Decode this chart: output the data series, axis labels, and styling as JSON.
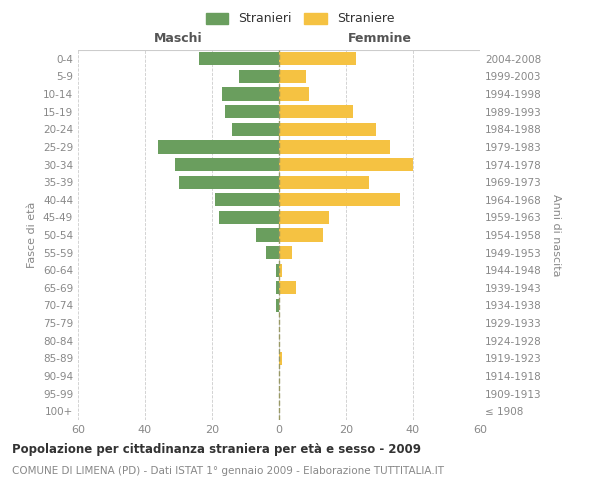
{
  "age_groups": [
    "100+",
    "95-99",
    "90-94",
    "85-89",
    "80-84",
    "75-79",
    "70-74",
    "65-69",
    "60-64",
    "55-59",
    "50-54",
    "45-49",
    "40-44",
    "35-39",
    "30-34",
    "25-29",
    "20-24",
    "15-19",
    "10-14",
    "5-9",
    "0-4"
  ],
  "birth_years": [
    "≤ 1908",
    "1909-1913",
    "1914-1918",
    "1919-1923",
    "1924-1928",
    "1929-1933",
    "1934-1938",
    "1939-1943",
    "1944-1948",
    "1949-1953",
    "1954-1958",
    "1959-1963",
    "1964-1968",
    "1969-1973",
    "1974-1978",
    "1979-1983",
    "1984-1988",
    "1989-1993",
    "1994-1998",
    "1999-2003",
    "2004-2008"
  ],
  "maschi": [
    0,
    0,
    0,
    0,
    0,
    0,
    1,
    1,
    1,
    4,
    7,
    18,
    19,
    30,
    31,
    36,
    14,
    16,
    17,
    12,
    24
  ],
  "femmine": [
    0,
    0,
    0,
    1,
    0,
    0,
    0,
    5,
    1,
    4,
    13,
    15,
    36,
    27,
    40,
    33,
    29,
    22,
    9,
    8,
    23
  ],
  "male_color": "#6a9e5e",
  "female_color": "#f5c242",
  "title": "Popolazione per cittadinanza straniera per età e sesso - 2009",
  "subtitle": "COMUNE DI LIMENA (PD) - Dati ISTAT 1° gennaio 2009 - Elaborazione TUTTITALIA.IT",
  "xlabel_left": "Maschi",
  "xlabel_right": "Femmine",
  "ylabel_left": "Fasce di età",
  "ylabel_right": "Anni di nascita",
  "xlim": 60,
  "background_color": "#ffffff",
  "grid_color": "#cccccc",
  "legend_stranieri": "Stranieri",
  "legend_straniere": "Straniere",
  "bar_height": 0.75,
  "center_line_color": "#999966",
  "axis_text_color": "#888888",
  "title_color": "#333333",
  "label_color": "#555555"
}
